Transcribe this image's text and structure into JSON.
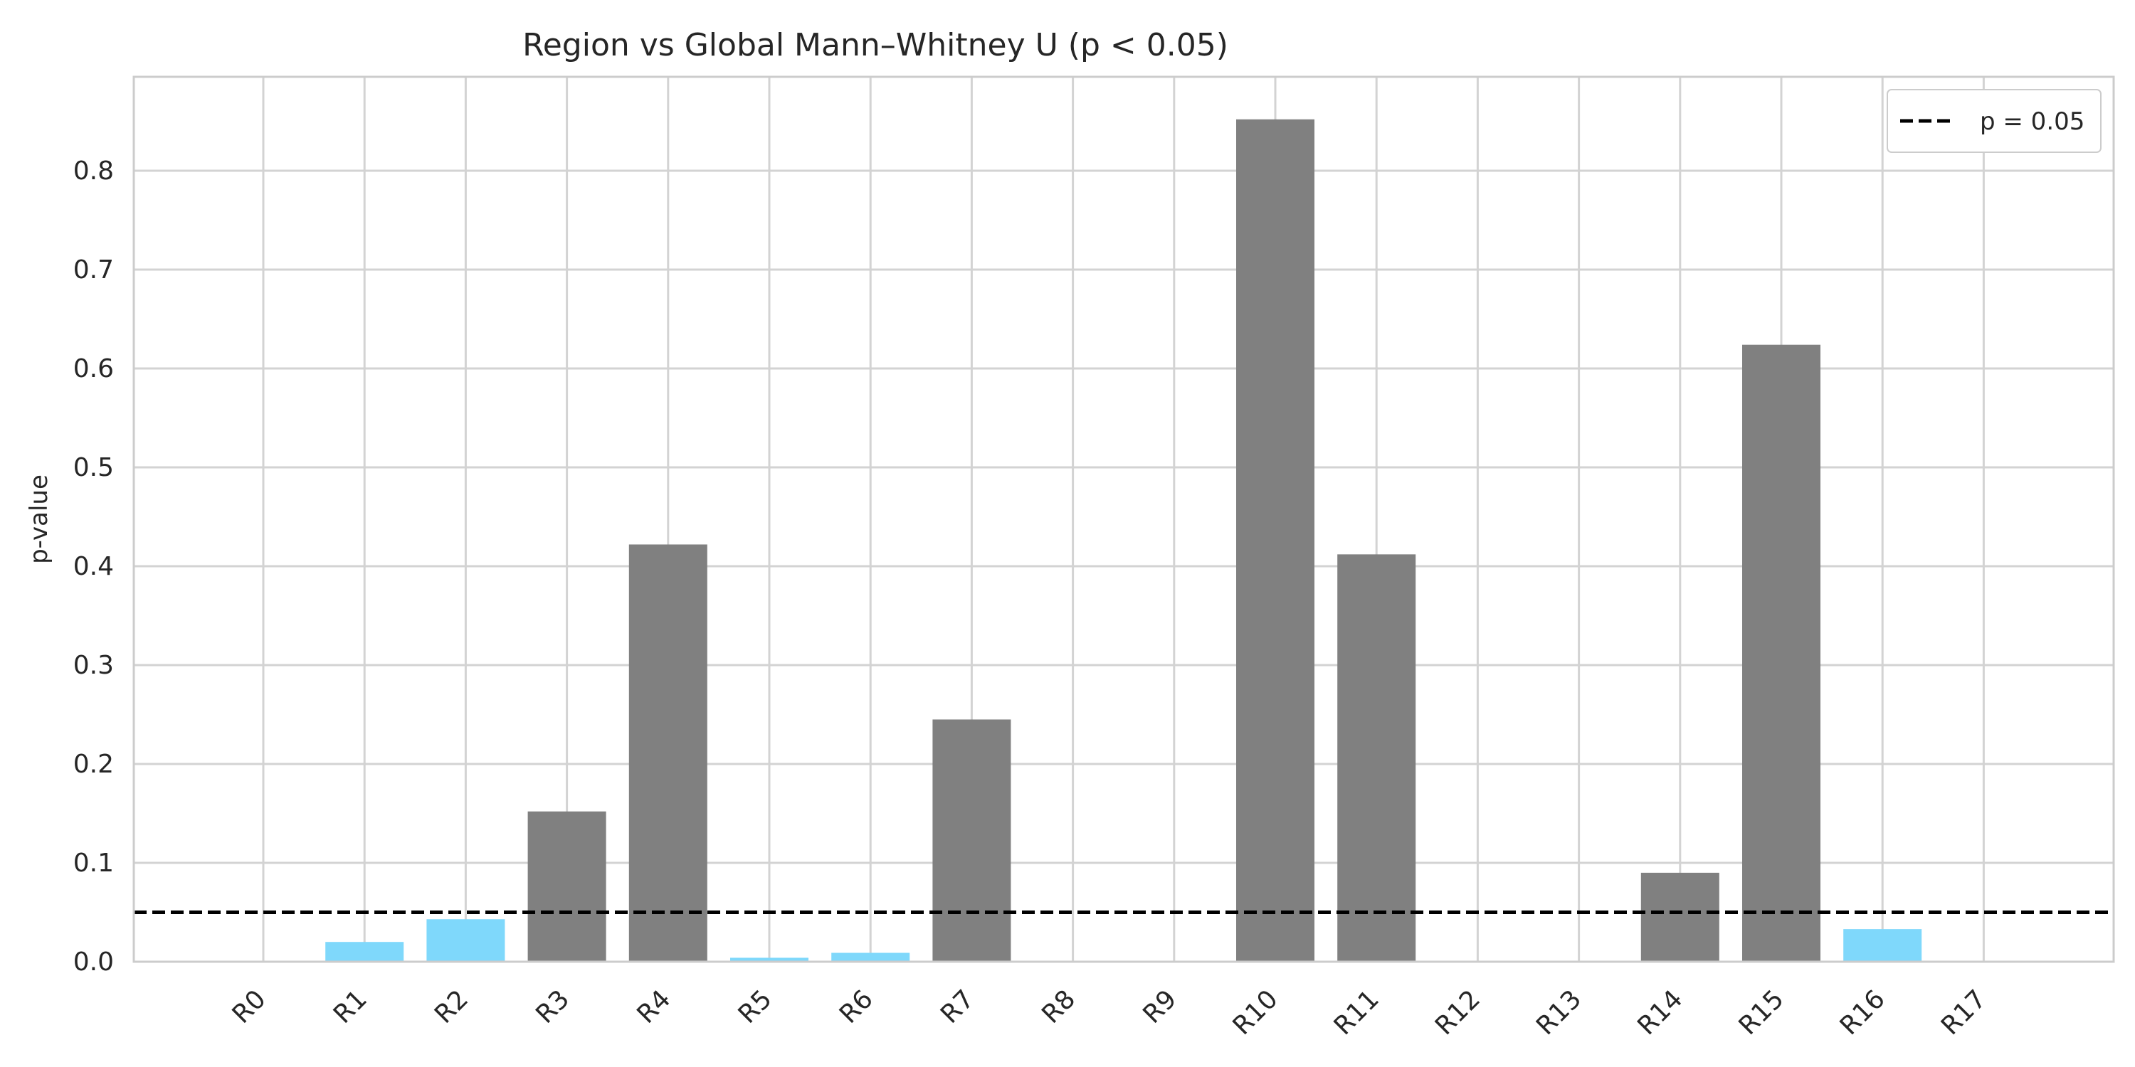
{
  "chart_data": {
    "type": "bar",
    "title": "Region vs Global Mann–Whitney U (p < 0.05)",
    "xlabel": "",
    "ylabel": "p-value",
    "categories": [
      "R0",
      "R1",
      "R2",
      "R3",
      "R4",
      "R5",
      "R6",
      "R7",
      "R8",
      "R9",
      "R10",
      "R11",
      "R12",
      "R13",
      "R14",
      "R15",
      "R16",
      "R17"
    ],
    "values": [
      0.0,
      0.02,
      0.043,
      0.152,
      0.422,
      0.004,
      0.009,
      0.245,
      0.0,
      0.0,
      0.852,
      0.412,
      0.0,
      0.0,
      0.09,
      0.624,
      0.033,
      0.0
    ],
    "ylim": [
      0,
      0.895
    ],
    "yticks": [
      0.0,
      0.1,
      0.2,
      0.3,
      0.4,
      0.5,
      0.6,
      0.7,
      0.8
    ],
    "ytick_labels": [
      "0.0",
      "0.1",
      "0.2",
      "0.3",
      "0.4",
      "0.5",
      "0.6",
      "0.7",
      "0.8"
    ],
    "threshold": {
      "value": 0.05,
      "label": "p = 0.05",
      "style": "dashed",
      "color": "#000000"
    },
    "colors": {
      "significant": "#7fd8fb",
      "not_significant": "#808080"
    },
    "grid": true,
    "legend_position": "upper right"
  }
}
